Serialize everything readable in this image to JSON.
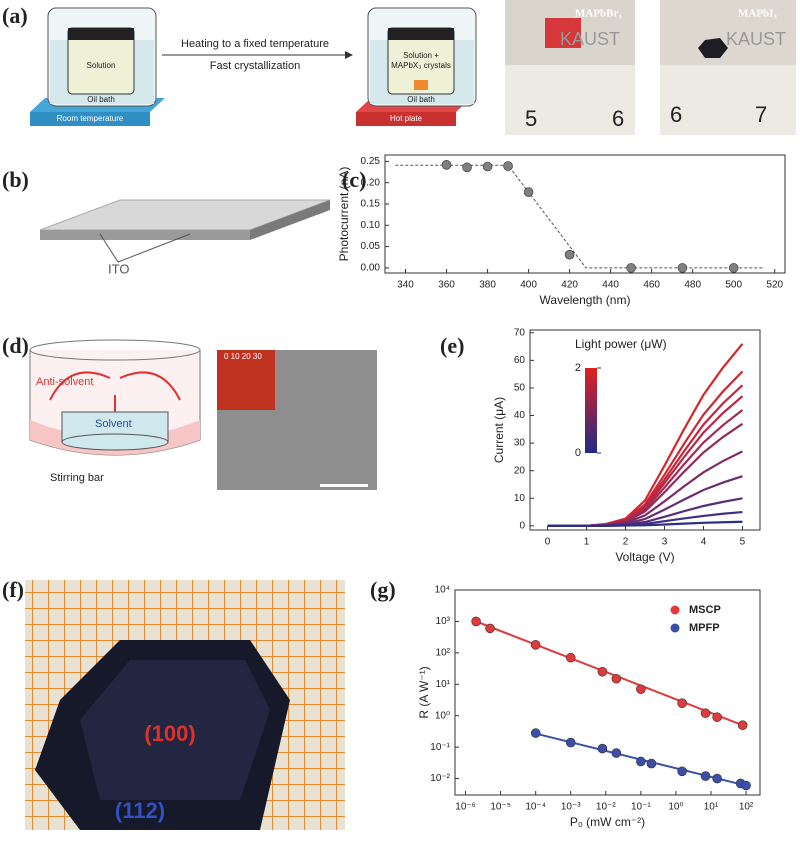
{
  "panels": {
    "a": "(a)",
    "b": "(b)",
    "c": "(c)",
    "d": "(d)",
    "e": "(e)",
    "f": "(f)",
    "g": "(g)"
  },
  "panel_a": {
    "solution": "Solution",
    "oil_bath_1": "Oil bath",
    "arrow_top": "Heating to a fixed temperature",
    "arrow_bottom": "Fast crystallization",
    "solution_crystals_1": "Solution +",
    "solution_crystals_2": "MAPbX₃ crystals",
    "oil_bath_2": "Oil bath",
    "room_temperature": "Room temperature",
    "hot_plate": "Hot plate",
    "photo1_label": "MAPbBr₃",
    "photo2_label": "MAPbI₃",
    "kaust": "KAUST",
    "ruler1": [
      "5",
      "6"
    ],
    "ruler2": [
      "6",
      "7"
    ]
  },
  "panel_b": {
    "ito": "ITO"
  },
  "panel_d": {
    "anti_solvent": "Anti-solvent",
    "solvent": "Solvent",
    "stirring_bar": "Stirring bar",
    "scale": "0  10  20  30"
  },
  "panel_f": {
    "facet1": "(100)",
    "facet2": "(112)"
  },
  "chart_data": [
    {
      "type": "scatter",
      "xlabel": "Wavelength (nm)",
      "ylabel": "Photocurrent (nA)",
      "xlim": [
        330,
        525
      ],
      "ylim": [
        -0.012,
        0.265
      ],
      "xticks": [
        340,
        360,
        380,
        400,
        420,
        440,
        460,
        480,
        500,
        520
      ],
      "yticks": [
        {
          "value": 0,
          "label": "0.00"
        },
        {
          "value": 0.05,
          "label": "0.05"
        },
        {
          "value": 0.1,
          "label": "0.10"
        },
        {
          "value": 0.15,
          "label": "0.15"
        },
        {
          "value": 0.2,
          "label": "0.20"
        },
        {
          "value": 0.25,
          "label": "0.25"
        }
      ],
      "series": [
        {
          "color": "#7f7f7f",
          "x": [
            360,
            370,
            380,
            390,
            400,
            420,
            450,
            475,
            500
          ],
          "values": [
            0.242,
            0.236,
            0.238,
            0.239,
            0.178,
            0.031,
            0,
            0,
            0
          ]
        }
      ],
      "fit": {
        "x": [
          335,
          390,
          428,
          515
        ],
        "values": [
          0.241,
          0.241,
          0,
          0
        ]
      }
    },
    {
      "type": "line",
      "xlabel": "Voltage (V)",
      "ylabel": "Current (μA)",
      "xlim": [
        -0.45,
        5.45
      ],
      "ylim": [
        -1.5,
        71
      ],
      "xticks": [
        0,
        1,
        2,
        3,
        4,
        5
      ],
      "yticks": [
        0,
        10,
        20,
        30,
        40,
        50,
        60,
        70
      ],
      "x": [
        0,
        1,
        1.5,
        2,
        2.5,
        3,
        3.5,
        4,
        4.5,
        5
      ],
      "colorbar": {
        "label": "Light power (μW)",
        "ticks": [
          0,
          2
        ]
      },
      "series": [
        {
          "color": "#d7262b",
          "values": [
            0,
            0,
            0.7,
            2.6,
            9.2,
            21.8,
            35,
            47.5,
            57.4,
            66
          ]
        },
        {
          "color": "#cf2632",
          "values": [
            0,
            0,
            0.6,
            2.2,
            7.8,
            18.5,
            29.7,
            40.3,
            48.7,
            56
          ]
        },
        {
          "color": "#c4263b",
          "values": [
            0,
            0,
            0.5,
            2,
            7.1,
            16.8,
            27,
            36.7,
            44.4,
            51
          ]
        },
        {
          "color": "#b62846",
          "values": [
            0,
            0,
            0.5,
            1.9,
            6.6,
            15.5,
            24.9,
            33.8,
            40.9,
            47
          ]
        },
        {
          "color": "#a62a51",
          "values": [
            0,
            0,
            0.4,
            1.7,
            5.9,
            13.9,
            22.3,
            30.2,
            36.5,
            42
          ]
        },
        {
          "color": "#942b5c",
          "values": [
            0,
            0,
            0.4,
            1.5,
            5.2,
            12.2,
            19.6,
            26.6,
            32.2,
            37
          ]
        },
        {
          "color": "#7e2c66",
          "values": [
            0,
            0,
            0.3,
            1.1,
            3.8,
            8.9,
            14.3,
            19.4,
            23.5,
            27
          ]
        },
        {
          "color": "#6a2d70",
          "values": [
            0,
            0,
            0.2,
            0.7,
            2.5,
            5.9,
            9.5,
            13,
            15.7,
            18
          ]
        },
        {
          "color": "#562e7a",
          "values": [
            0,
            0,
            0.1,
            0.4,
            1.4,
            3.3,
            5.3,
            7.2,
            8.7,
            10
          ]
        },
        {
          "color": "#412f80",
          "values": [
            0,
            0,
            0.1,
            0.2,
            0.7,
            1.7,
            2.7,
            3.6,
            4.4,
            5
          ]
        },
        {
          "color": "#2c2f86",
          "values": [
            0,
            0,
            0,
            0.1,
            0.2,
            0.5,
            0.8,
            1.1,
            1.3,
            1.5
          ]
        }
      ]
    },
    {
      "type": "scatter",
      "xlabel": "P₀ (mW cm⁻²)",
      "ylabel": "R (A W⁻¹)",
      "xscale": "log",
      "yscale": "log",
      "xlim": [
        5e-07,
        250
      ],
      "ylim": [
        0.003,
        10000
      ],
      "xticks": [
        {
          "value": 1e-06,
          "label": "10⁻⁶"
        },
        {
          "value": 1e-05,
          "label": "10⁻⁵"
        },
        {
          "value": 0.0001,
          "label": "10⁻⁴"
        },
        {
          "value": 0.001,
          "label": "10⁻³"
        },
        {
          "value": 0.01,
          "label": "10⁻²"
        },
        {
          "value": 0.1,
          "label": "10⁻¹"
        },
        {
          "value": 1,
          "label": "10⁰"
        },
        {
          "value": 10,
          "label": "10¹"
        },
        {
          "value": 100,
          "label": "10²"
        }
      ],
      "yticks": [
        {
          "value": 0.01,
          "label": "10⁻²"
        },
        {
          "value": 0.1,
          "label": "10⁻¹"
        },
        {
          "value": 1,
          "label": "10⁰"
        },
        {
          "value": 10,
          "label": "10¹"
        },
        {
          "value": 100,
          "label": "10²"
        },
        {
          "value": 1000,
          "label": "10³"
        },
        {
          "value": 10000,
          "label": "10⁴"
        }
      ],
      "legend": "upper right",
      "series": [
        {
          "name": "MSCP",
          "color": "#e03a3a",
          "x": [
            2e-06,
            5e-06,
            0.0001,
            0.001,
            0.008,
            0.02,
            0.1,
            1.5,
            7,
            15,
            80
          ],
          "values": [
            1000,
            600,
            180,
            70,
            25,
            15,
            7,
            2.5,
            1.2,
            0.9,
            0.5
          ],
          "fit": {
            "x": [
              2e-06,
              100
            ],
            "values": [
              1000,
              0.45
            ]
          }
        },
        {
          "name": "MPFP",
          "color": "#3a4fa8",
          "x": [
            0.0001,
            0.001,
            0.008,
            0.02,
            0.1,
            0.2,
            1.5,
            7,
            15,
            70,
            100
          ],
          "values": [
            0.28,
            0.14,
            0.09,
            0.065,
            0.035,
            0.03,
            0.017,
            0.012,
            0.01,
            0.007,
            0.006
          ],
          "fit": {
            "x": [
              0.0001,
              100
            ],
            "values": [
              0.27,
              0.006
            ]
          }
        }
      ]
    }
  ]
}
